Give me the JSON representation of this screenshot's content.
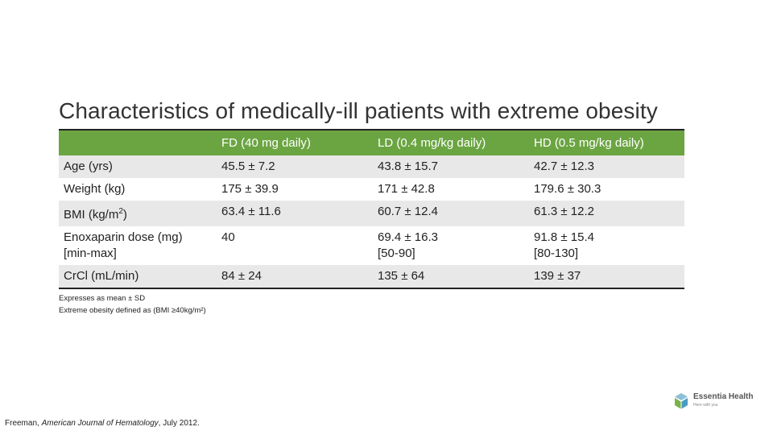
{
  "title": "Characteristics of medically-ill patients with extreme obesity",
  "colors": {
    "header_bg": "#6ba542",
    "row_shade": "#e8e8e8"
  },
  "table": {
    "headers": [
      "",
      "FD (40 mg daily)",
      "LD (0.4 mg/kg daily)",
      "HD (0.5 mg/kg daily)"
    ],
    "rows": [
      {
        "label": "Age (yrs)",
        "fd": "45.5 ± 7.2",
        "ld": "43.8 ± 15.7",
        "hd": "42.7 ± 12.3"
      },
      {
        "label": "Weight (kg)",
        "fd": "175 ± 39.9",
        "ld": "171 ± 42.8",
        "hd": "179.6 ± 30.3"
      },
      {
        "label_main": "BMI (kg/m",
        "label_sup": "2",
        "label_end": ")",
        "fd": "63.4 ± 11.6",
        "ld": "60.7 ± 12.4",
        "hd": "61.3 ± 12.2"
      },
      {
        "label_line1": "Enoxaparin dose (mg)",
        "label_line2": "[min-max]",
        "fd": "40",
        "ld_line1": "69.4 ± 16.3",
        "ld_line2": "[50-90]",
        "hd_line1": "91.8 ± 15.4",
        "hd_line2": "[80-130]"
      },
      {
        "label": "CrCl (mL/min)",
        "fd": "84 ± 24",
        "ld": "135 ± 64",
        "hd": "139 ± 37"
      }
    ]
  },
  "notes": [
    "Expresses as mean ± SD",
    "Extreme obesity defined as (BMI ≥40kg/m²)"
  ],
  "citation": {
    "author": "Freeman, ",
    "journal": "American Journal of Hematology",
    "date": ", July 2012."
  },
  "logo": {
    "name": "Essentia Health",
    "tagline": "Here with you",
    "icon": "essentia-logo-mark"
  }
}
